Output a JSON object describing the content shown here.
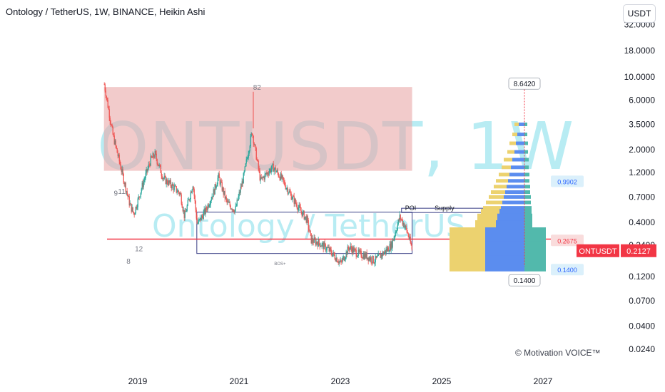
{
  "header": {
    "title": "Ontology / TetherUS, 1W, BINANCE, Heikin Ashi",
    "currency_button": "USDT"
  },
  "watermark": {
    "symbol_interval": "ONTUSDT, 1W",
    "name": "Ontology / TetherUS"
  },
  "credit": "© Motivation VOICE™",
  "colors": {
    "up": "#26a69a",
    "down": "#ef5350",
    "supply_zone": "#e9a9a9",
    "support_line": "#f23645",
    "volume_profile_blue": "#5b8def",
    "volume_profile_yellow": "#ecd26f",
    "volume_profile_green": "#52b9ac",
    "price_tag": "#f23645"
  },
  "chart_data": {
    "type": "candlestick",
    "style": "Heikin Ashi",
    "interval": "1W",
    "exchange": "BINANCE",
    "symbol": "ONTUSDT",
    "y_scale": "log",
    "ylim": [
      0.02,
      32
    ],
    "x_ticks": [
      "2019",
      "2021",
      "2023",
      "2025",
      "2027"
    ],
    "y_ticks": [
      "32.0000",
      "18.0000",
      "10.0000",
      "6.0000",
      "3.5000",
      "2.0000",
      "1.2000",
      "0.7000",
      "0.4000",
      "0.2400",
      "0.1200",
      "0.0700",
      "0.0400",
      "0.0240"
    ],
    "current_price": {
      "symbol_label": "ONTUSDT",
      "value": "0.2127"
    },
    "price_labels": [
      {
        "text": "8.6420",
        "value": 8.642,
        "style": "callout"
      },
      {
        "text": "0.9902",
        "value": 0.9902,
        "style": "side"
      },
      {
        "text": "0.2675",
        "value": 0.2675,
        "style": "side"
      },
      {
        "text": "0.1400",
        "value": 0.14,
        "style": "side"
      },
      {
        "text": "0.1400",
        "value": 0.14,
        "style": "callout"
      }
    ],
    "support_level": 0.275,
    "supply_zone": {
      "from": "2018-05",
      "to": "2024-06",
      "price_high": 8.0,
      "price_low": 1.25
    },
    "bos_box": {
      "from": "2020-03",
      "to": "2024-06",
      "price_high": 0.5,
      "price_low": 0.2
    },
    "annotations": [
      {
        "text": "82",
        "x": "2021-04",
        "y": 7.5
      },
      {
        "text": "9",
        "x": "2018-07",
        "y": 0.72
      },
      {
        "text": "11",
        "x": "2018-08",
        "y": 0.75
      },
      {
        "text": "8",
        "x": "2018-10",
        "y": 0.16
      },
      {
        "text": "12",
        "x": "2018-12",
        "y": 0.21
      },
      {
        "text": "BOS+",
        "x": "2021-09",
        "y": 0.155
      },
      {
        "text": "POI",
        "x": "2024-04",
        "y": 0.52
      },
      {
        "text": "Supply",
        "x": "2024-11",
        "y": 0.52
      }
    ],
    "weekly_trend": [
      [
        "2018-05",
        8.5
      ],
      [
        "2018-07",
        2.8
      ],
      [
        "2018-09",
        1.3
      ],
      [
        "2018-11",
        0.6
      ],
      [
        "2018-12",
        0.48
      ],
      [
        "2019-02",
        0.9
      ],
      [
        "2019-04",
        1.6
      ],
      [
        "2019-05",
        1.8
      ],
      [
        "2019-07",
        1.05
      ],
      [
        "2019-09",
        0.9
      ],
      [
        "2019-11",
        0.75
      ],
      [
        "2019-12",
        0.45
      ],
      [
        "2020-02",
        0.95
      ],
      [
        "2020-03",
        0.38
      ],
      [
        "2020-05",
        0.52
      ],
      [
        "2020-07",
        0.8
      ],
      [
        "2020-08",
        1.1
      ],
      [
        "2020-10",
        0.62
      ],
      [
        "2020-12",
        0.52
      ],
      [
        "2021-02",
        1.1
      ],
      [
        "2021-04",
        3.0
      ],
      [
        "2021-06",
        1.0
      ],
      [
        "2021-08",
        1.25
      ],
      [
        "2021-09",
        1.35
      ],
      [
        "2021-11",
        1.05
      ],
      [
        "2022-01",
        0.75
      ],
      [
        "2022-03",
        0.55
      ],
      [
        "2022-05",
        0.42
      ],
      [
        "2022-06",
        0.27
      ],
      [
        "2022-08",
        0.25
      ],
      [
        "2022-10",
        0.22
      ],
      [
        "2022-12",
        0.18
      ],
      [
        "2023-01",
        0.16
      ],
      [
        "2023-03",
        0.23
      ],
      [
        "2023-05",
        0.2
      ],
      [
        "2023-07",
        0.19
      ],
      [
        "2023-09",
        0.17
      ],
      [
        "2023-11",
        0.2
      ],
      [
        "2024-01",
        0.24
      ],
      [
        "2024-03",
        0.45
      ],
      [
        "2024-04",
        0.38
      ],
      [
        "2024-05",
        0.3
      ],
      [
        "2024-06",
        0.21
      ]
    ],
    "volume_profile_price_rows": [
      8.6,
      3.5,
      2.8,
      2.3,
      1.9,
      1.6,
      1.35,
      1.15,
      1.0,
      0.88,
      0.78,
      0.7,
      0.62,
      0.55,
      0.49,
      0.44,
      0.38,
      0.3,
      0.22,
      0.16
    ]
  }
}
